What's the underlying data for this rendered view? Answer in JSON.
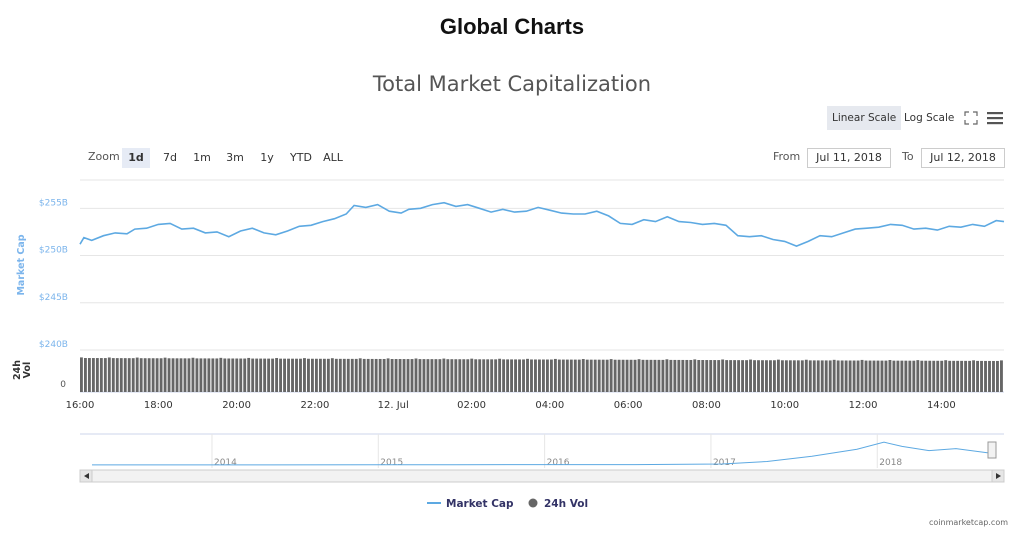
{
  "page": {
    "title": "Global Charts",
    "credit": "coinmarketcap.com"
  },
  "toolbar": {
    "linear_label": "Linear Scale",
    "log_label": "Log Scale",
    "fullscreen_icon": "expand-icon",
    "menu_icon": "hamburger-menu-icon"
  },
  "zoom": {
    "label": "Zoom",
    "options": [
      "1d",
      "7d",
      "1m",
      "3m",
      "1y",
      "YTD",
      "ALL"
    ],
    "active": "1d"
  },
  "range": {
    "from_label": "From",
    "from_value": "Jul 11, 2018",
    "to_label": "To",
    "to_value": "Jul 12, 2018"
  },
  "legend": {
    "market_cap_label": "Market Cap",
    "vol_label": "24h Vol"
  },
  "colors": {
    "line": "#5da9e2",
    "line_axis": "#7cb5ec",
    "volume": "#666666",
    "grid": "#e6e6e6"
  },
  "chart_data": {
    "type": "line",
    "title": "Total Market Capitalization",
    "series_name": "Market Cap",
    "ylabel": "Market Cap",
    "y_unit": "USD billions",
    "yticks": [
      "$255B",
      "$250B",
      "$245B",
      "$240B"
    ],
    "ytick_values": [
      255,
      250,
      245,
      240
    ],
    "ylim": [
      240,
      258
    ],
    "x_unit": "hours since 16:00 Jul 11, 2018",
    "xlim": [
      0,
      23.6
    ],
    "xticks": [
      "16:00",
      "18:00",
      "20:00",
      "22:00",
      "12. Jul",
      "02:00",
      "04:00",
      "06:00",
      "08:00",
      "10:00",
      "12:00",
      "14:00"
    ],
    "xtick_values": [
      0,
      2,
      4,
      6,
      8,
      10,
      12,
      14,
      16,
      18,
      20,
      22
    ],
    "points": [
      [
        0,
        251.2
      ],
      [
        0.1,
        251.9
      ],
      [
        0.3,
        251.6
      ],
      [
        0.6,
        252.1
      ],
      [
        0.9,
        252.4
      ],
      [
        1.2,
        252.3
      ],
      [
        1.4,
        252.8
      ],
      [
        1.7,
        252.9
      ],
      [
        2.0,
        253.3
      ],
      [
        2.3,
        253.4
      ],
      [
        2.6,
        252.8
      ],
      [
        2.9,
        252.9
      ],
      [
        3.2,
        252.4
      ],
      [
        3.5,
        252.5
      ],
      [
        3.8,
        252.0
      ],
      [
        4.1,
        252.6
      ],
      [
        4.4,
        252.9
      ],
      [
        4.7,
        252.4
      ],
      [
        5.0,
        252.2
      ],
      [
        5.3,
        252.6
      ],
      [
        5.6,
        253.1
      ],
      [
        5.9,
        253.2
      ],
      [
        6.2,
        253.6
      ],
      [
        6.5,
        253.9
      ],
      [
        6.8,
        254.4
      ],
      [
        7.0,
        255.3
      ],
      [
        7.3,
        255.1
      ],
      [
        7.6,
        255.4
      ],
      [
        7.9,
        254.7
      ],
      [
        8.2,
        254.5
      ],
      [
        8.4,
        254.9
      ],
      [
        8.7,
        255.0
      ],
      [
        9.0,
        255.4
      ],
      [
        9.3,
        255.6
      ],
      [
        9.6,
        255.2
      ],
      [
        9.9,
        255.4
      ],
      [
        10.2,
        255.0
      ],
      [
        10.5,
        254.6
      ],
      [
        10.8,
        254.9
      ],
      [
        11.1,
        254.6
      ],
      [
        11.4,
        254.7
      ],
      [
        11.7,
        255.1
      ],
      [
        12.0,
        254.8
      ],
      [
        12.3,
        254.5
      ],
      [
        12.6,
        254.4
      ],
      [
        12.9,
        254.4
      ],
      [
        13.2,
        254.7
      ],
      [
        13.5,
        254.2
      ],
      [
        13.8,
        253.4
      ],
      [
        14.1,
        253.3
      ],
      [
        14.4,
        253.8
      ],
      [
        14.7,
        253.6
      ],
      [
        15.0,
        254.1
      ],
      [
        15.3,
        253.6
      ],
      [
        15.6,
        253.5
      ],
      [
        15.9,
        253.3
      ],
      [
        16.2,
        253.4
      ],
      [
        16.5,
        253.2
      ],
      [
        16.8,
        252.1
      ],
      [
        17.1,
        252.0
      ],
      [
        17.4,
        252.1
      ],
      [
        17.7,
        251.7
      ],
      [
        18.0,
        251.5
      ],
      [
        18.3,
        251.0
      ],
      [
        18.6,
        251.5
      ],
      [
        18.9,
        252.1
      ],
      [
        19.2,
        252.0
      ],
      [
        19.5,
        252.4
      ],
      [
        19.8,
        252.8
      ],
      [
        20.1,
        252.9
      ],
      [
        20.4,
        253.0
      ],
      [
        20.7,
        253.3
      ],
      [
        21.0,
        253.2
      ],
      [
        21.3,
        252.8
      ],
      [
        21.6,
        252.9
      ],
      [
        21.9,
        252.7
      ],
      [
        22.2,
        253.1
      ],
      [
        22.5,
        253.0
      ],
      [
        22.8,
        253.3
      ],
      [
        23.1,
        253.1
      ],
      [
        23.4,
        253.7
      ],
      [
        23.6,
        253.6
      ]
    ],
    "volume_axis": {
      "label": "24h Vol",
      "tick": "0"
    },
    "navigator": {
      "labels": [
        "2014",
        "2015",
        "2016",
        "2017",
        "2018"
      ],
      "label_positions": [
        0.145,
        0.325,
        0.505,
        0.685,
        0.865
      ],
      "series": [
        [
          0,
          0.04
        ],
        [
          0.2,
          0.04
        ],
        [
          0.4,
          0.045
        ],
        [
          0.6,
          0.05
        ],
        [
          0.7,
          0.07
        ],
        [
          0.75,
          0.16
        ],
        [
          0.8,
          0.35
        ],
        [
          0.85,
          0.6
        ],
        [
          0.88,
          0.85
        ],
        [
          0.9,
          0.7
        ],
        [
          0.93,
          0.55
        ],
        [
          0.96,
          0.62
        ],
        [
          1.0,
          0.45
        ]
      ]
    }
  }
}
